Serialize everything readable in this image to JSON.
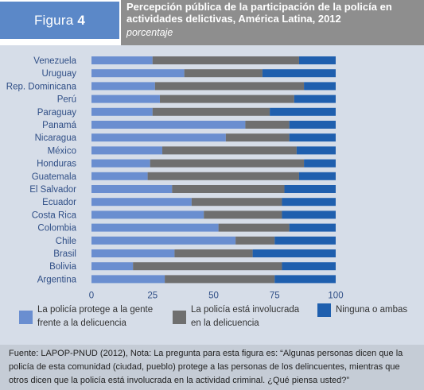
{
  "header": {
    "figure_label": "Figura",
    "figure_number": "4",
    "title": "Percepción pública de la participación de la policía en actividades delictivas, América Latina, 2012",
    "subtitle": "porcentaje"
  },
  "colors": {
    "protege": "#6a8ed0",
    "involucrada": "#6f6f6f",
    "ninguna": "#1f5fae",
    "axis_text": "#2f4e86"
  },
  "legend": {
    "items": [
      {
        "label": "La policía protege a la gente frente a la delicuencia",
        "color": "#6a8ed0"
      },
      {
        "label": "La policía está involucrada en la delicuencia",
        "color": "#6f6f6f"
      },
      {
        "label": "Ninguna o ambas",
        "color": "#1f5fae"
      }
    ]
  },
  "footer": {
    "note": "Fuente: LAPOP-PNUD (2012), Nota: La pregunta para esta figura es: “Algunas personas dicen que la policía de esta comunidad (ciudad, pueblo) protege a las personas de los delincuentes, mientras que otros dicen que la policía está involucrada en la actividad criminal. ¿Qué piensa usted?”"
  },
  "chart_data": {
    "type": "bar",
    "orientation": "horizontal",
    "stacked": true,
    "title": "Percepción pública de la participación de la policía en actividades delictivas, América Latina, 2012",
    "subtitle": "porcentaje",
    "xlim": [
      0,
      100
    ],
    "xticks": [
      0,
      25,
      50,
      75,
      100
    ],
    "grid": false,
    "legend_position": "bottom",
    "categories": [
      "Venezuela",
      "Uruguay",
      "Rep. Dominicana",
      "Perú",
      "Paraguay",
      "Panamá",
      "Nicaragua",
      "México",
      "Honduras",
      "Guatemala",
      "El Salvador",
      "Ecuador",
      "Costa Rica",
      "Colombia",
      "Chile",
      "Brasil",
      "Bolivia",
      "Argentina"
    ],
    "series": [
      {
        "name": "La policía protege a la gente frente a la delicuencia",
        "color": "#6a8ed0",
        "values": [
          25,
          38,
          26,
          28,
          25,
          63,
          55,
          29,
          24,
          23,
          33,
          41,
          46,
          52,
          59,
          34,
          17,
          30
        ]
      },
      {
        "name": "La policía está involucrada en la delicuencia",
        "color": "#6f6f6f",
        "values": [
          60,
          32,
          61,
          55,
          48,
          18,
          26,
          55,
          63,
          62,
          46,
          37,
          32,
          29,
          16,
          32,
          61,
          45
        ]
      },
      {
        "name": "Ninguna o ambas",
        "color": "#1f5fae",
        "values": [
          15,
          30,
          13,
          17,
          27,
          19,
          19,
          16,
          13,
          15,
          21,
          22,
          22,
          19,
          25,
          34,
          22,
          25
        ]
      }
    ]
  }
}
